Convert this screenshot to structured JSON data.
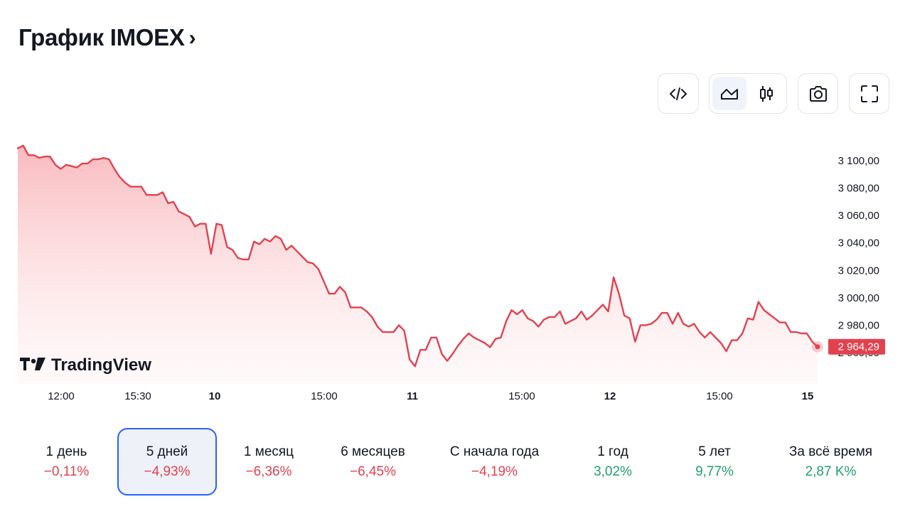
{
  "header": {
    "title": "График IMOEX",
    "chevron": "›"
  },
  "toolbar": {
    "buttons": [
      {
        "name": "embed-code-button",
        "icon": "code-icon"
      },
      {
        "name": "area-chart-button",
        "icon": "area-chart-icon",
        "active": true
      },
      {
        "name": "candles-chart-button",
        "icon": "candles-icon"
      },
      {
        "name": "screenshot-button",
        "icon": "camera-icon"
      },
      {
        "name": "fullscreen-button",
        "icon": "fullscreen-icon"
      }
    ]
  },
  "watermark": "TradingView",
  "chart_data": {
    "type": "area",
    "title": "",
    "xlabel": "",
    "ylabel": "",
    "ylim": [
      2955,
      3115
    ],
    "y_ticks": [
      "3 100,00",
      "3 080,00",
      "3 060,00",
      "3 040,00",
      "3 020,00",
      "3 000,00",
      "2 980,00",
      "2 960,00"
    ],
    "y_tick_values": [
      3100,
      3080,
      3060,
      3040,
      3020,
      3000,
      2980,
      2960
    ],
    "x_ticks": [
      {
        "label": "12:00",
        "bold": false
      },
      {
        "label": "15:30",
        "bold": false
      },
      {
        "label": "10",
        "bold": true
      },
      {
        "label": "15:00",
        "bold": false
      },
      {
        "label": "11",
        "bold": true
      },
      {
        "label": "15:00",
        "bold": false
      },
      {
        "label": "12",
        "bold": true
      },
      {
        "label": "15:00",
        "bold": false
      },
      {
        "label": "15",
        "bold": true
      }
    ],
    "last_value": 2964.29,
    "last_value_label": "2 964,29",
    "line_color": "#e2424f",
    "fill_color": "#f7c6c9",
    "series": [
      {
        "values": [
          3109,
          3111,
          3104,
          3104,
          3102,
          3103,
          3103,
          3097,
          3094,
          3097,
          3096,
          3095,
          3098,
          3098,
          3101,
          3101,
          3102,
          3101,
          3094,
          3088,
          3084,
          3081,
          3081,
          3081,
          3075,
          3075,
          3075,
          3077,
          3069,
          3070,
          3063,
          3061,
          3059,
          3052,
          3054,
          3054,
          3032,
          3054,
          3053,
          3037,
          3035,
          3029,
          3028,
          3028,
          3041,
          3039,
          3043,
          3041,
          3045,
          3043,
          3035,
          3038,
          3034,
          3030,
          3026,
          3025,
          3021,
          3012,
          3003,
          3003,
          3008,
          3004,
          2993,
          2993,
          2993,
          2990,
          2986,
          2979,
          2975,
          2975,
          2975,
          2980,
          2976,
          2955,
          2950,
          2962,
          2962,
          2971,
          2971,
          2959,
          2954,
          2959,
          2965,
          2970,
          2974,
          2971,
          2969,
          2967,
          2964,
          2970,
          2971,
          2983,
          2991,
          2988,
          2991,
          2985,
          2983,
          2979,
          2984,
          2986,
          2986,
          2990,
          2981,
          2983,
          2985,
          2990,
          2984,
          2987,
          2991,
          2995,
          2990,
          3015,
          3003,
          2987,
          2985,
          2968,
          2980,
          2980,
          2981,
          2984,
          2989,
          2989,
          2981,
          2989,
          2981,
          2979,
          2981,
          2975,
          2971,
          2975,
          2971,
          2967,
          2961,
          2969,
          2969,
          2974,
          2985,
          2984,
          2997,
          2991,
          2988,
          2985,
          2982,
          2982,
          2975,
          2975,
          2974,
          2974,
          2968,
          2964.29
        ]
      }
    ]
  },
  "periods": [
    {
      "label": "1 день",
      "value": "−0,11%",
      "trend": "neg",
      "active": false
    },
    {
      "label": "5 дней",
      "value": "−4,93%",
      "trend": "neg",
      "active": true
    },
    {
      "label": "1 месяц",
      "value": "−6,36%",
      "trend": "neg",
      "active": false
    },
    {
      "label": "6 месяцев",
      "value": "−6,45%",
      "trend": "neg",
      "active": false
    },
    {
      "label": "С начала года",
      "value": "−4,19%",
      "trend": "neg",
      "active": false
    },
    {
      "label": "1 год",
      "value": "3,02%",
      "trend": "pos",
      "active": false
    },
    {
      "label": "5 лет",
      "value": "9,77%",
      "trend": "pos",
      "active": false
    },
    {
      "label": "За всё время",
      "value": "2,87 K%",
      "trend": "pos",
      "active": false
    }
  ]
}
